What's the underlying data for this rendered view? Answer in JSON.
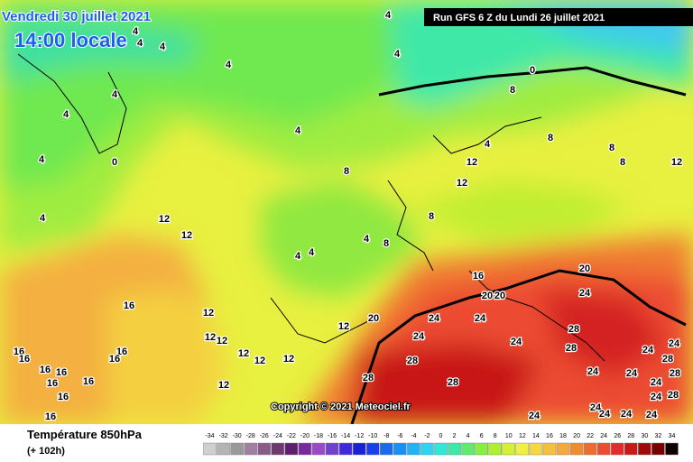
{
  "header": {
    "date": "Vendredi 30 juillet 2021",
    "time": "14:00 locale",
    "run": "Run GFS 6 Z du Lundi 26 juillet 2021"
  },
  "copyright": "Copyright © 2021 Meteociel.fr",
  "footer": {
    "title": "Température 850hPa",
    "lead": "(+ 102h)"
  },
  "scale": {
    "values": [
      -34,
      -32,
      -30,
      -28,
      -26,
      -24,
      -22,
      -20,
      -18,
      -16,
      -14,
      -12,
      -10,
      -8,
      -6,
      -4,
      -2,
      0,
      2,
      4,
      6,
      8,
      10,
      12,
      14,
      16,
      18,
      20,
      22,
      24,
      26,
      28,
      30,
      32,
      34
    ],
    "colors": [
      "#cfcfcf",
      "#b4b4b4",
      "#999999",
      "#a07fa0",
      "#8a5a8a",
      "#6e3a6e",
      "#5a1f6e",
      "#7a2a9e",
      "#9a49c8",
      "#7040d0",
      "#3e2ad8",
      "#1a20d6",
      "#1a40ee",
      "#1a6af0",
      "#1a90f4",
      "#20b4f4",
      "#30d4f0",
      "#30e8d8",
      "#40e8a8",
      "#60ea70",
      "#88ee40",
      "#b0ee30",
      "#d4f030",
      "#f0f040",
      "#f4d840",
      "#f4c040",
      "#f4a840",
      "#f08c30",
      "#ee6c30",
      "#ec4c30",
      "#e42a2a",
      "#c81818",
      "#a00a0a",
      "#780000",
      "#100000"
    ]
  },
  "contour_labels": [
    4,
    4,
    4,
    4,
    4,
    4,
    4,
    4,
    4,
    4,
    4,
    0,
    0,
    8,
    8,
    8,
    8,
    8,
    12,
    12,
    12,
    12,
    12,
    4,
    4,
    4,
    4,
    8,
    8,
    16,
    20,
    20,
    20,
    20,
    12,
    12,
    24,
    24,
    24,
    24,
    24,
    28,
    28,
    28,
    28,
    28,
    24,
    24,
    24,
    24,
    16,
    16,
    16,
    16,
    16,
    16,
    16,
    16,
    16,
    16,
    16,
    12,
    12,
    12,
    12,
    12,
    12,
    28,
    28,
    24,
    24,
    28,
    24,
    24,
    24,
    24,
    24
  ]
}
